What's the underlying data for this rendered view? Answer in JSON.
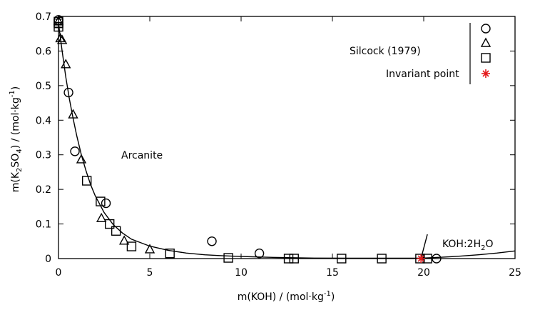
{
  "chart_data": {
    "type": "scatter",
    "xlabel_parts": [
      "m(KOH) / (mol·kg",
      "-1",
      ")"
    ],
    "ylabel_parts": [
      "m(K",
      "2",
      "SO",
      "4",
      ") / (mol·kg",
      "-1",
      ")"
    ],
    "xlim": [
      0,
      25
    ],
    "ylim": [
      0,
      0.7
    ],
    "xticks": [
      0,
      5,
      10,
      15,
      20,
      25
    ],
    "yticks": [
      0,
      0.1,
      0.2,
      0.3,
      0.4,
      0.5,
      0.6,
      0.7
    ],
    "legend": {
      "placement": "top-right",
      "label": "Silcock (1979)",
      "invariant_label": "Invariant point"
    },
    "annotations": {
      "arcanite": "Arcanite",
      "koh_parts": [
        "KOH:2H",
        "2",
        "O"
      ]
    },
    "series": [
      {
        "marker": "circle",
        "points": [
          [
            0,
            0.69
          ],
          [
            0.55,
            0.48
          ],
          [
            0.9,
            0.31
          ],
          [
            2.6,
            0.16
          ],
          [
            8.4,
            0.05
          ],
          [
            11.0,
            0.015
          ],
          [
            20.7,
            0.0
          ]
        ]
      },
      {
        "marker": "triangle",
        "points": [
          [
            0,
            0.685
          ],
          [
            0.1,
            0.635
          ],
          [
            0.2,
            0.63
          ],
          [
            0.4,
            0.56
          ],
          [
            0.8,
            0.415
          ],
          [
            1.25,
            0.285
          ],
          [
            2.35,
            0.115
          ],
          [
            3.6,
            0.05
          ],
          [
            5.0,
            0.025
          ]
        ]
      },
      {
        "marker": "square",
        "points": [
          [
            0,
            0.685
          ],
          [
            0,
            0.68
          ],
          [
            0,
            0.67
          ],
          [
            1.55,
            0.225
          ],
          [
            2.3,
            0.165
          ],
          [
            2.8,
            0.1
          ],
          [
            3.15,
            0.08
          ],
          [
            4.0,
            0.035
          ],
          [
            6.1,
            0.015
          ],
          [
            9.3,
            0.002
          ],
          [
            12.6,
            0.0
          ],
          [
            12.9,
            0.0
          ],
          [
            15.5,
            0.0
          ],
          [
            17.7,
            0.0
          ],
          [
            19.8,
            0.0
          ],
          [
            20.2,
            0.0
          ]
        ]
      }
    ],
    "invariant_point": [
      19.85,
      0.0
    ],
    "curve": [
      [
        0,
        0.68
      ],
      [
        0.2,
        0.6
      ],
      [
        0.4,
        0.525
      ],
      [
        0.6,
        0.46
      ],
      [
        0.8,
        0.405
      ],
      [
        1.0,
        0.355
      ],
      [
        1.25,
        0.3
      ],
      [
        1.5,
        0.255
      ],
      [
        1.75,
        0.215
      ],
      [
        2.0,
        0.183
      ],
      [
        2.5,
        0.133
      ],
      [
        3.0,
        0.098
      ],
      [
        3.5,
        0.074
      ],
      [
        4.0,
        0.056
      ],
      [
        5.0,
        0.036
      ],
      [
        6.0,
        0.024
      ],
      [
        7.0,
        0.016
      ],
      [
        8.0,
        0.011
      ],
      [
        9.0,
        0.008
      ],
      [
        10.0,
        0.006
      ],
      [
        12.0,
        0.003
      ],
      [
        14.0,
        0.0015
      ],
      [
        16.0,
        0.001
      ],
      [
        18.0,
        0.001
      ],
      [
        19.85,
        0.001
      ],
      [
        21.0,
        0.004
      ],
      [
        22.0,
        0.007
      ],
      [
        23.0,
        0.011
      ],
      [
        24.0,
        0.016
      ],
      [
        25.0,
        0.022
      ]
    ],
    "boundary_line": [
      [
        19.85,
        0.0
      ],
      [
        20.2,
        0.07
      ]
    ],
    "colors": {
      "axes": "#000000",
      "invariant": "#e31a1c"
    }
  }
}
